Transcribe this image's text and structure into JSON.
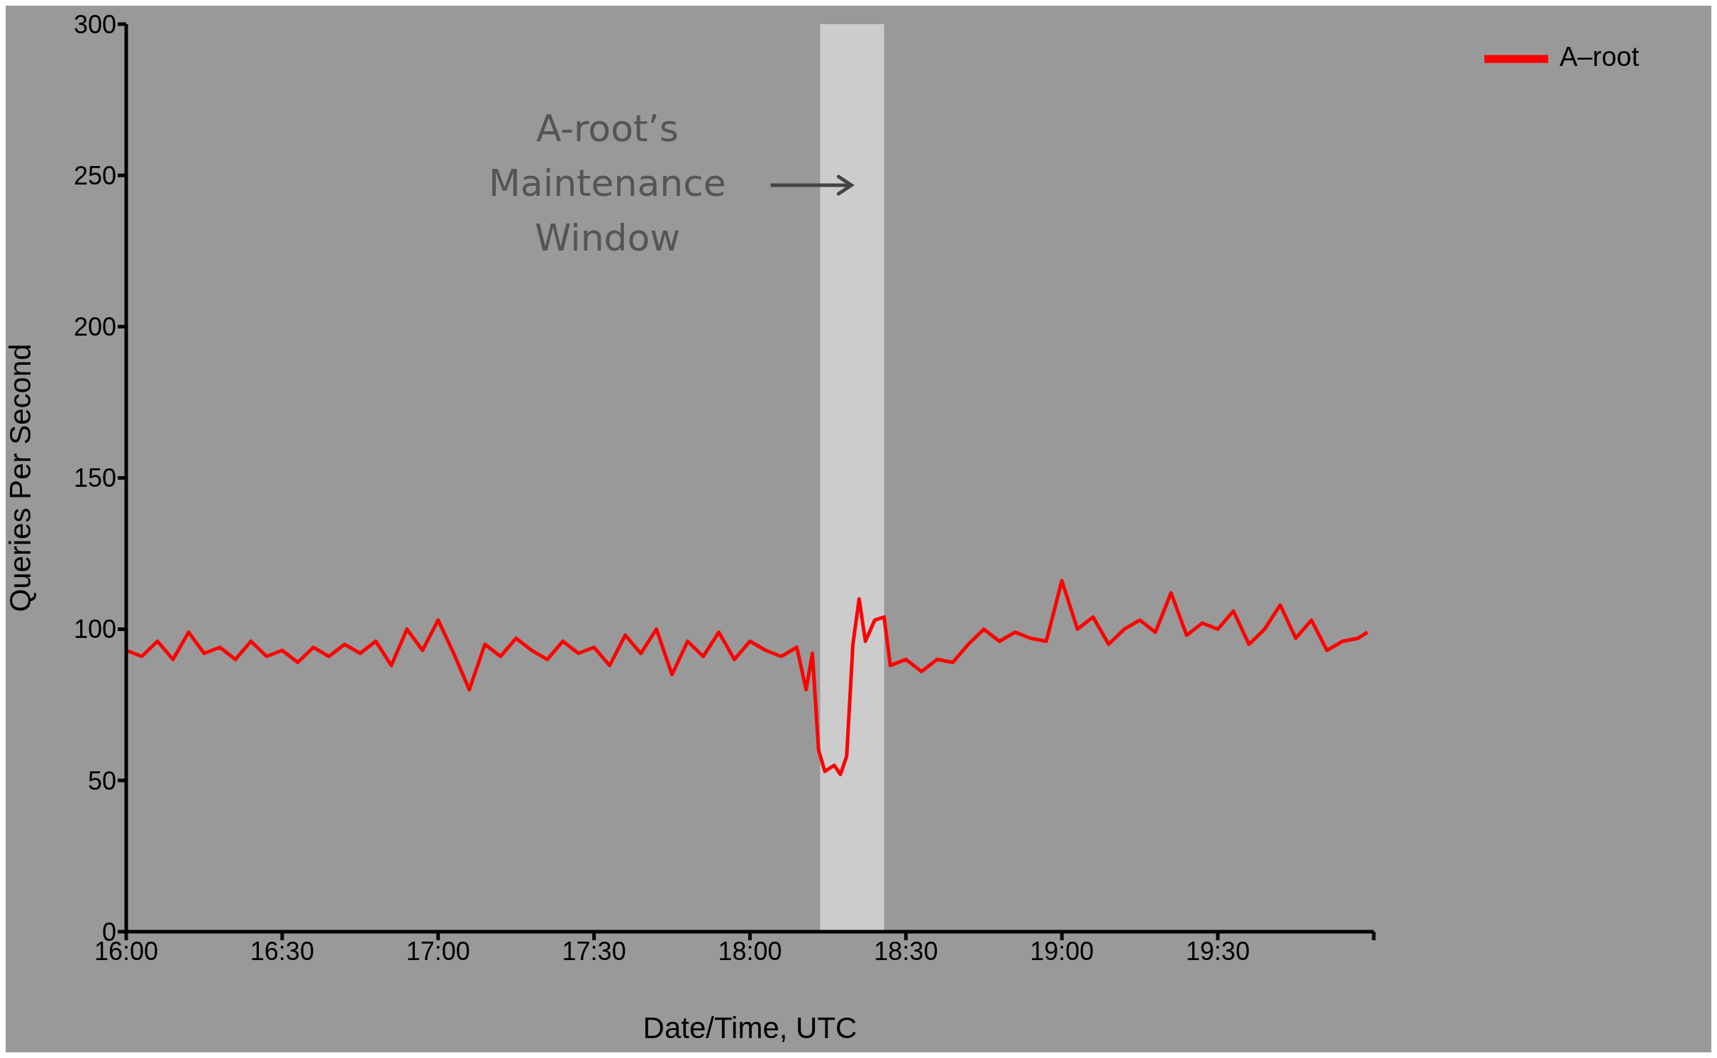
{
  "chart_data": {
    "type": "line",
    "xlabel": "Date/Time, UTC",
    "ylabel": "Queries Per Second",
    "xlim": [
      16,
      20
    ],
    "ylim": [
      0,
      300
    ],
    "xticks": [
      {
        "value": 16,
        "label": "16:00"
      },
      {
        "value": 16.5,
        "label": "16:30"
      },
      {
        "value": 17,
        "label": "17:00"
      },
      {
        "value": 17.5,
        "label": "17:30"
      },
      {
        "value": 18,
        "label": "18:00"
      },
      {
        "value": 18.5,
        "label": "18:30"
      },
      {
        "value": 19,
        "label": "19:00"
      },
      {
        "value": 19.5,
        "label": "19:30"
      },
      {
        "value": 20,
        "label": null
      }
    ],
    "yticks": [
      0,
      50,
      100,
      150,
      200,
      250,
      300
    ],
    "legend": "top right",
    "marker": "none",
    "line_style": "solid",
    "bands": [
      {
        "axis": "x",
        "from": 18.225,
        "to": 18.43,
        "label": "A-root’s Maintenance Window",
        "color": "#cccccc"
      }
    ],
    "x": [
      16,
      16.05,
      16.1,
      16.15,
      16.2,
      16.25,
      16.3,
      16.35,
      16.4,
      16.45,
      16.5,
      16.55,
      16.6,
      16.65,
      16.7,
      16.75,
      16.8,
      16.85,
      16.9,
      16.95,
      17,
      17.05,
      17.1,
      17.15,
      17.2,
      17.25,
      17.3,
      17.35,
      17.4,
      17.45,
      17.5,
      17.55,
      17.6,
      17.65,
      17.7,
      17.75,
      17.8,
      17.85,
      17.9,
      17.95,
      18,
      18.05,
      18.1,
      18.15,
      18.18,
      18.2,
      18.22,
      18.24,
      18.27,
      18.29,
      18.31,
      18.33,
      18.35,
      18.37,
      18.4,
      18.43,
      18.45,
      18.5,
      18.55,
      18.6,
      18.65,
      18.7,
      18.75,
      18.8,
      18.85,
      18.9,
      18.95,
      19,
      19.05,
      19.1,
      19.15,
      19.2,
      19.25,
      19.3,
      19.35,
      19.4,
      19.45,
      19.5,
      19.55,
      19.6,
      19.65,
      19.7,
      19.75,
      19.8,
      19.85,
      19.9,
      19.95,
      19.98
    ],
    "series": [
      {
        "name": "A–root",
        "color": "#ff0000",
        "values": [
          93,
          91,
          96,
          90,
          99,
          92,
          94,
          90,
          96,
          91,
          93,
          89,
          94,
          91,
          95,
          92,
          96,
          88,
          100,
          93,
          103,
          92,
          80,
          95,
          91,
          97,
          93,
          90,
          96,
          92,
          94,
          88,
          98,
          92,
          100,
          85,
          96,
          91,
          99,
          90,
          96,
          93,
          91,
          94,
          80,
          92,
          60,
          53,
          55,
          52,
          58,
          95,
          110,
          96,
          103,
          104,
          88,
          90,
          86,
          90,
          89,
          95,
          100,
          96,
          99,
          97,
          96,
          116,
          100,
          104,
          95,
          100,
          103,
          99,
          112,
          98,
          102,
          100,
          106,
          95,
          100,
          108,
          97,
          103,
          93,
          96,
          97,
          99
        ]
      }
    ]
  }
}
